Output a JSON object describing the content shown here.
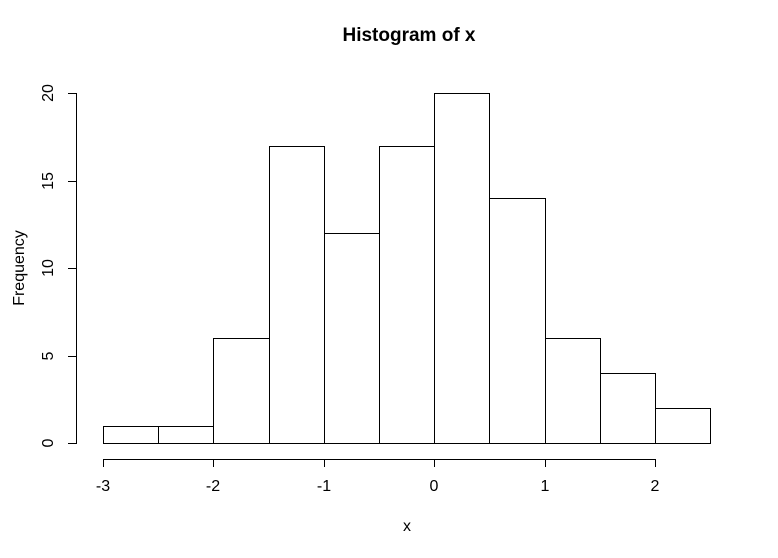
{
  "page": {
    "background": "#ffffff"
  },
  "chart_data": {
    "type": "bar",
    "subtype": "histogram",
    "title": "Histogram of x",
    "xlabel": "x",
    "ylabel": "Frequency",
    "breaks": [
      -3,
      -2.5,
      -2,
      -1.5,
      -1,
      -0.5,
      0,
      0.5,
      1,
      1.5,
      2,
      2.5
    ],
    "counts": [
      1,
      1,
      6,
      17,
      12,
      17,
      20,
      14,
      6,
      4,
      2
    ],
    "x_ticks": [
      -3,
      -2,
      -1,
      0,
      1,
      2
    ],
    "y_ticks": [
      0,
      5,
      10,
      15,
      20
    ],
    "xlim": [
      -3,
      2.5
    ],
    "ylim": [
      0,
      20
    ],
    "grid": false,
    "legend": "none",
    "colors": {
      "bar_fill": "#ffffff",
      "line": "#000000",
      "text": "#000000",
      "background": "#ffffff"
    }
  }
}
